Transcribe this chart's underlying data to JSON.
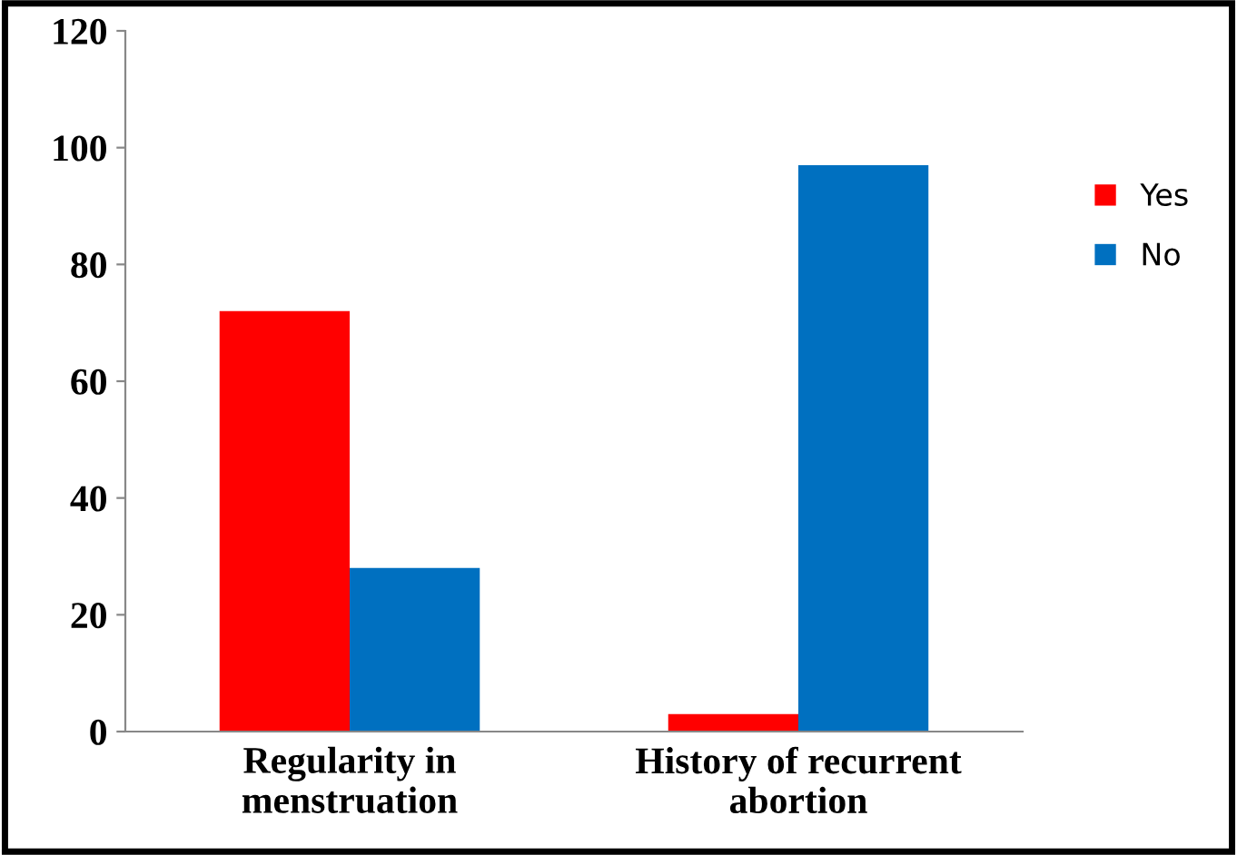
{
  "chart_data": {
    "type": "bar",
    "categories": [
      "Regularity in\nmenstruation",
      "History of recurrent\nabortion"
    ],
    "series": [
      {
        "name": "Yes",
        "color": "#ff0000",
        "values": [
          72,
          3
        ]
      },
      {
        "name": "No",
        "color": "#0070c0",
        "values": [
          28,
          97
        ]
      }
    ],
    "ylim": [
      0,
      120
    ],
    "yticks": [
      0,
      20,
      40,
      60,
      80,
      100,
      120
    ],
    "grid": false,
    "legend": "right"
  }
}
